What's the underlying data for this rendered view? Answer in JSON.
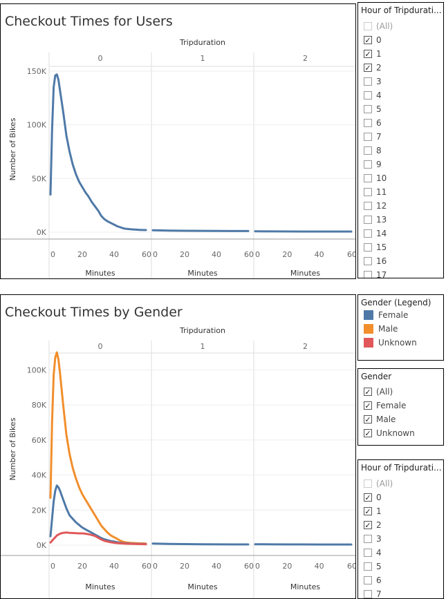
{
  "chart1": {
    "title": "Checkout Times for Users",
    "header": "Tripduration",
    "panels": [
      "0",
      "1",
      "2"
    ],
    "ylabel": "Number of Bikes",
    "xlabel": "Minutes",
    "yticks": [
      "150K",
      "100K",
      "50K",
      "0K"
    ],
    "xticks": [
      "0",
      "20",
      "40",
      "60"
    ]
  },
  "chart2": {
    "title": "Checkout Times by Gender",
    "header": "Tripduration",
    "panels": [
      "0",
      "1",
      "2"
    ],
    "ylabel": "Number of Bikes",
    "xlabel": "Minutes",
    "yticks": [
      "100K",
      "80K",
      "60K",
      "40K",
      "20K",
      "0K"
    ],
    "xticks": [
      "0",
      "20",
      "40",
      "60"
    ]
  },
  "filter1": {
    "title": "Hour of Tripdurati...",
    "items": [
      {
        "label": "(All)",
        "checked": false,
        "dim": true
      },
      {
        "label": "0",
        "checked": true
      },
      {
        "label": "1",
        "checked": true
      },
      {
        "label": "2",
        "checked": true
      },
      {
        "label": "3",
        "checked": false
      },
      {
        "label": "4",
        "checked": false
      },
      {
        "label": "5",
        "checked": false
      },
      {
        "label": "6",
        "checked": false
      },
      {
        "label": "7",
        "checked": false
      },
      {
        "label": "8",
        "checked": false
      },
      {
        "label": "9",
        "checked": false
      },
      {
        "label": "10",
        "checked": false
      },
      {
        "label": "11",
        "checked": false
      },
      {
        "label": "12",
        "checked": false
      },
      {
        "label": "13",
        "checked": false
      },
      {
        "label": "14",
        "checked": false
      },
      {
        "label": "15",
        "checked": false
      },
      {
        "label": "16",
        "checked": false
      },
      {
        "label": "17",
        "checked": false
      }
    ]
  },
  "legend": {
    "title": "Gender (Legend)",
    "items": [
      {
        "label": "Female",
        "color": "#4e79a7"
      },
      {
        "label": "Male",
        "color": "#f28e2b"
      },
      {
        "label": "Unknown",
        "color": "#e15759"
      }
    ]
  },
  "filter_gender": {
    "title": "Gender",
    "items": [
      {
        "label": "(All)",
        "checked": true
      },
      {
        "label": "Female",
        "checked": true
      },
      {
        "label": "Male",
        "checked": true
      },
      {
        "label": "Unknown",
        "checked": true
      }
    ]
  },
  "filter2": {
    "title": "Hour of Tripdurati...",
    "items": [
      {
        "label": "(All)",
        "checked": false,
        "dim": true
      },
      {
        "label": "0",
        "checked": true
      },
      {
        "label": "1",
        "checked": true
      },
      {
        "label": "2",
        "checked": true
      },
      {
        "label": "3",
        "checked": false
      },
      {
        "label": "4",
        "checked": false
      },
      {
        "label": "5",
        "checked": false
      },
      {
        "label": "6",
        "checked": false
      },
      {
        "label": "7",
        "checked": false
      }
    ]
  },
  "chart_data": [
    {
      "type": "line",
      "title": "Checkout Times for Users",
      "facet": "Tripduration",
      "xlabel": "Minutes",
      "ylabel": "Number of Bikes",
      "xlim": [
        0,
        60
      ],
      "ylim": [
        0,
        150000
      ],
      "panels": [
        {
          "name": "0",
          "series": [
            {
              "color": "#4e79a7",
              "x": [
                0,
                1,
                2,
                3,
                4,
                5,
                6,
                8,
                10,
                12,
                14,
                16,
                18,
                20,
                22,
                24,
                26,
                28,
                30,
                32,
                34,
                36,
                38,
                40,
                42,
                44,
                46,
                48,
                50,
                52,
                54,
                56,
                58,
                60
              ],
              "y": [
                35000,
                95000,
                135000,
                146000,
                147000,
                142000,
                132000,
                112000,
                90000,
                75000,
                63000,
                54000,
                47000,
                42000,
                37000,
                33000,
                28000,
                24000,
                20000,
                15000,
                12000,
                10000,
                8500,
                7000,
                5500,
                4500,
                3500,
                3000,
                2800,
                2500,
                2300,
                2100,
                2000,
                1900
              ]
            }
          ]
        },
        {
          "name": "1",
          "series": [
            {
              "color": "#4e79a7",
              "x": [
                0,
                10,
                20,
                30,
                40,
                50,
                60
              ],
              "y": [
                1800,
                1500,
                1300,
                1200,
                1100,
                1000,
                1000
              ]
            }
          ]
        },
        {
          "name": "2",
          "series": [
            {
              "color": "#4e79a7",
              "x": [
                0,
                10,
                20,
                30,
                40,
                50,
                60
              ],
              "y": [
                800,
                700,
                650,
                600,
                600,
                550,
                550
              ]
            }
          ]
        }
      ]
    },
    {
      "type": "line",
      "title": "Checkout Times by Gender",
      "facet": "Tripduration",
      "xlabel": "Minutes",
      "ylabel": "Number of Bikes",
      "xlim": [
        0,
        60
      ],
      "ylim": [
        0,
        110000
      ],
      "panels": [
        {
          "name": "0",
          "series": [
            {
              "name": "Male",
              "color": "#f28e2b",
              "x": [
                0,
                1,
                2,
                3,
                4,
                5,
                6,
                8,
                10,
                12,
                14,
                16,
                18,
                20,
                22,
                24,
                26,
                28,
                30,
                32,
                34,
                36,
                38,
                40,
                42,
                44,
                46,
                48,
                50,
                52,
                54,
                56,
                58,
                60
              ],
              "y": [
                27000,
                70000,
                97000,
                107000,
                110000,
                106000,
                98000,
                80000,
                63000,
                52000,
                44000,
                38000,
                33000,
                29000,
                26000,
                23000,
                20000,
                17000,
                14000,
                11000,
                9000,
                7000,
                5500,
                4500,
                3500,
                2500,
                1800,
                1500,
                1300,
                1200,
                1100,
                1000,
                1000,
                900
              ]
            },
            {
              "name": "Female",
              "color": "#4e79a7",
              "x": [
                0,
                1,
                2,
                3,
                4,
                5,
                6,
                8,
                10,
                12,
                14,
                16,
                18,
                20,
                22,
                24,
                26,
                28,
                30,
                32,
                34,
                36,
                38,
                40,
                42,
                44,
                46,
                48,
                50,
                52,
                54,
                56,
                58,
                60
              ],
              "y": [
                5000,
                15000,
                25000,
                31000,
                34000,
                33000,
                31000,
                26000,
                21000,
                17000,
                15000,
                13000,
                11500,
                10000,
                9000,
                8000,
                7000,
                6000,
                5000,
                4000,
                3300,
                2800,
                2300,
                2000,
                1600,
                1300,
                1100,
                1000,
                900,
                800,
                800,
                700,
                700,
                600
              ]
            },
            {
              "name": "Unknown",
              "color": "#e15759",
              "x": [
                0,
                2,
                4,
                6,
                8,
                10,
                12,
                14,
                16,
                18,
                20,
                22,
                24,
                26,
                28,
                30,
                32,
                34,
                36,
                38,
                40,
                44,
                48,
                52,
                56,
                60
              ],
              "y": [
                1500,
                3500,
                5500,
                6500,
                7000,
                7200,
                7000,
                6900,
                6800,
                6700,
                6700,
                6500,
                6200,
                5800,
                5200,
                4200,
                3200,
                2400,
                2000,
                1600,
                1300,
                1000,
                800,
                700,
                600,
                500
              ]
            }
          ]
        },
        {
          "name": "1",
          "series": [
            {
              "name": "Female",
              "color": "#4e79a7",
              "x": [
                0,
                10,
                20,
                30,
                40,
                50,
                60
              ],
              "y": [
                900,
                700,
                600,
                500,
                450,
                400,
                400
              ]
            }
          ]
        },
        {
          "name": "2",
          "series": [
            {
              "name": "Female",
              "color": "#4e79a7",
              "x": [
                0,
                10,
                20,
                30,
                40,
                50,
                60
              ],
              "y": [
                500,
                450,
                400,
                400,
                350,
                350,
                350
              ]
            }
          ]
        }
      ]
    }
  ]
}
